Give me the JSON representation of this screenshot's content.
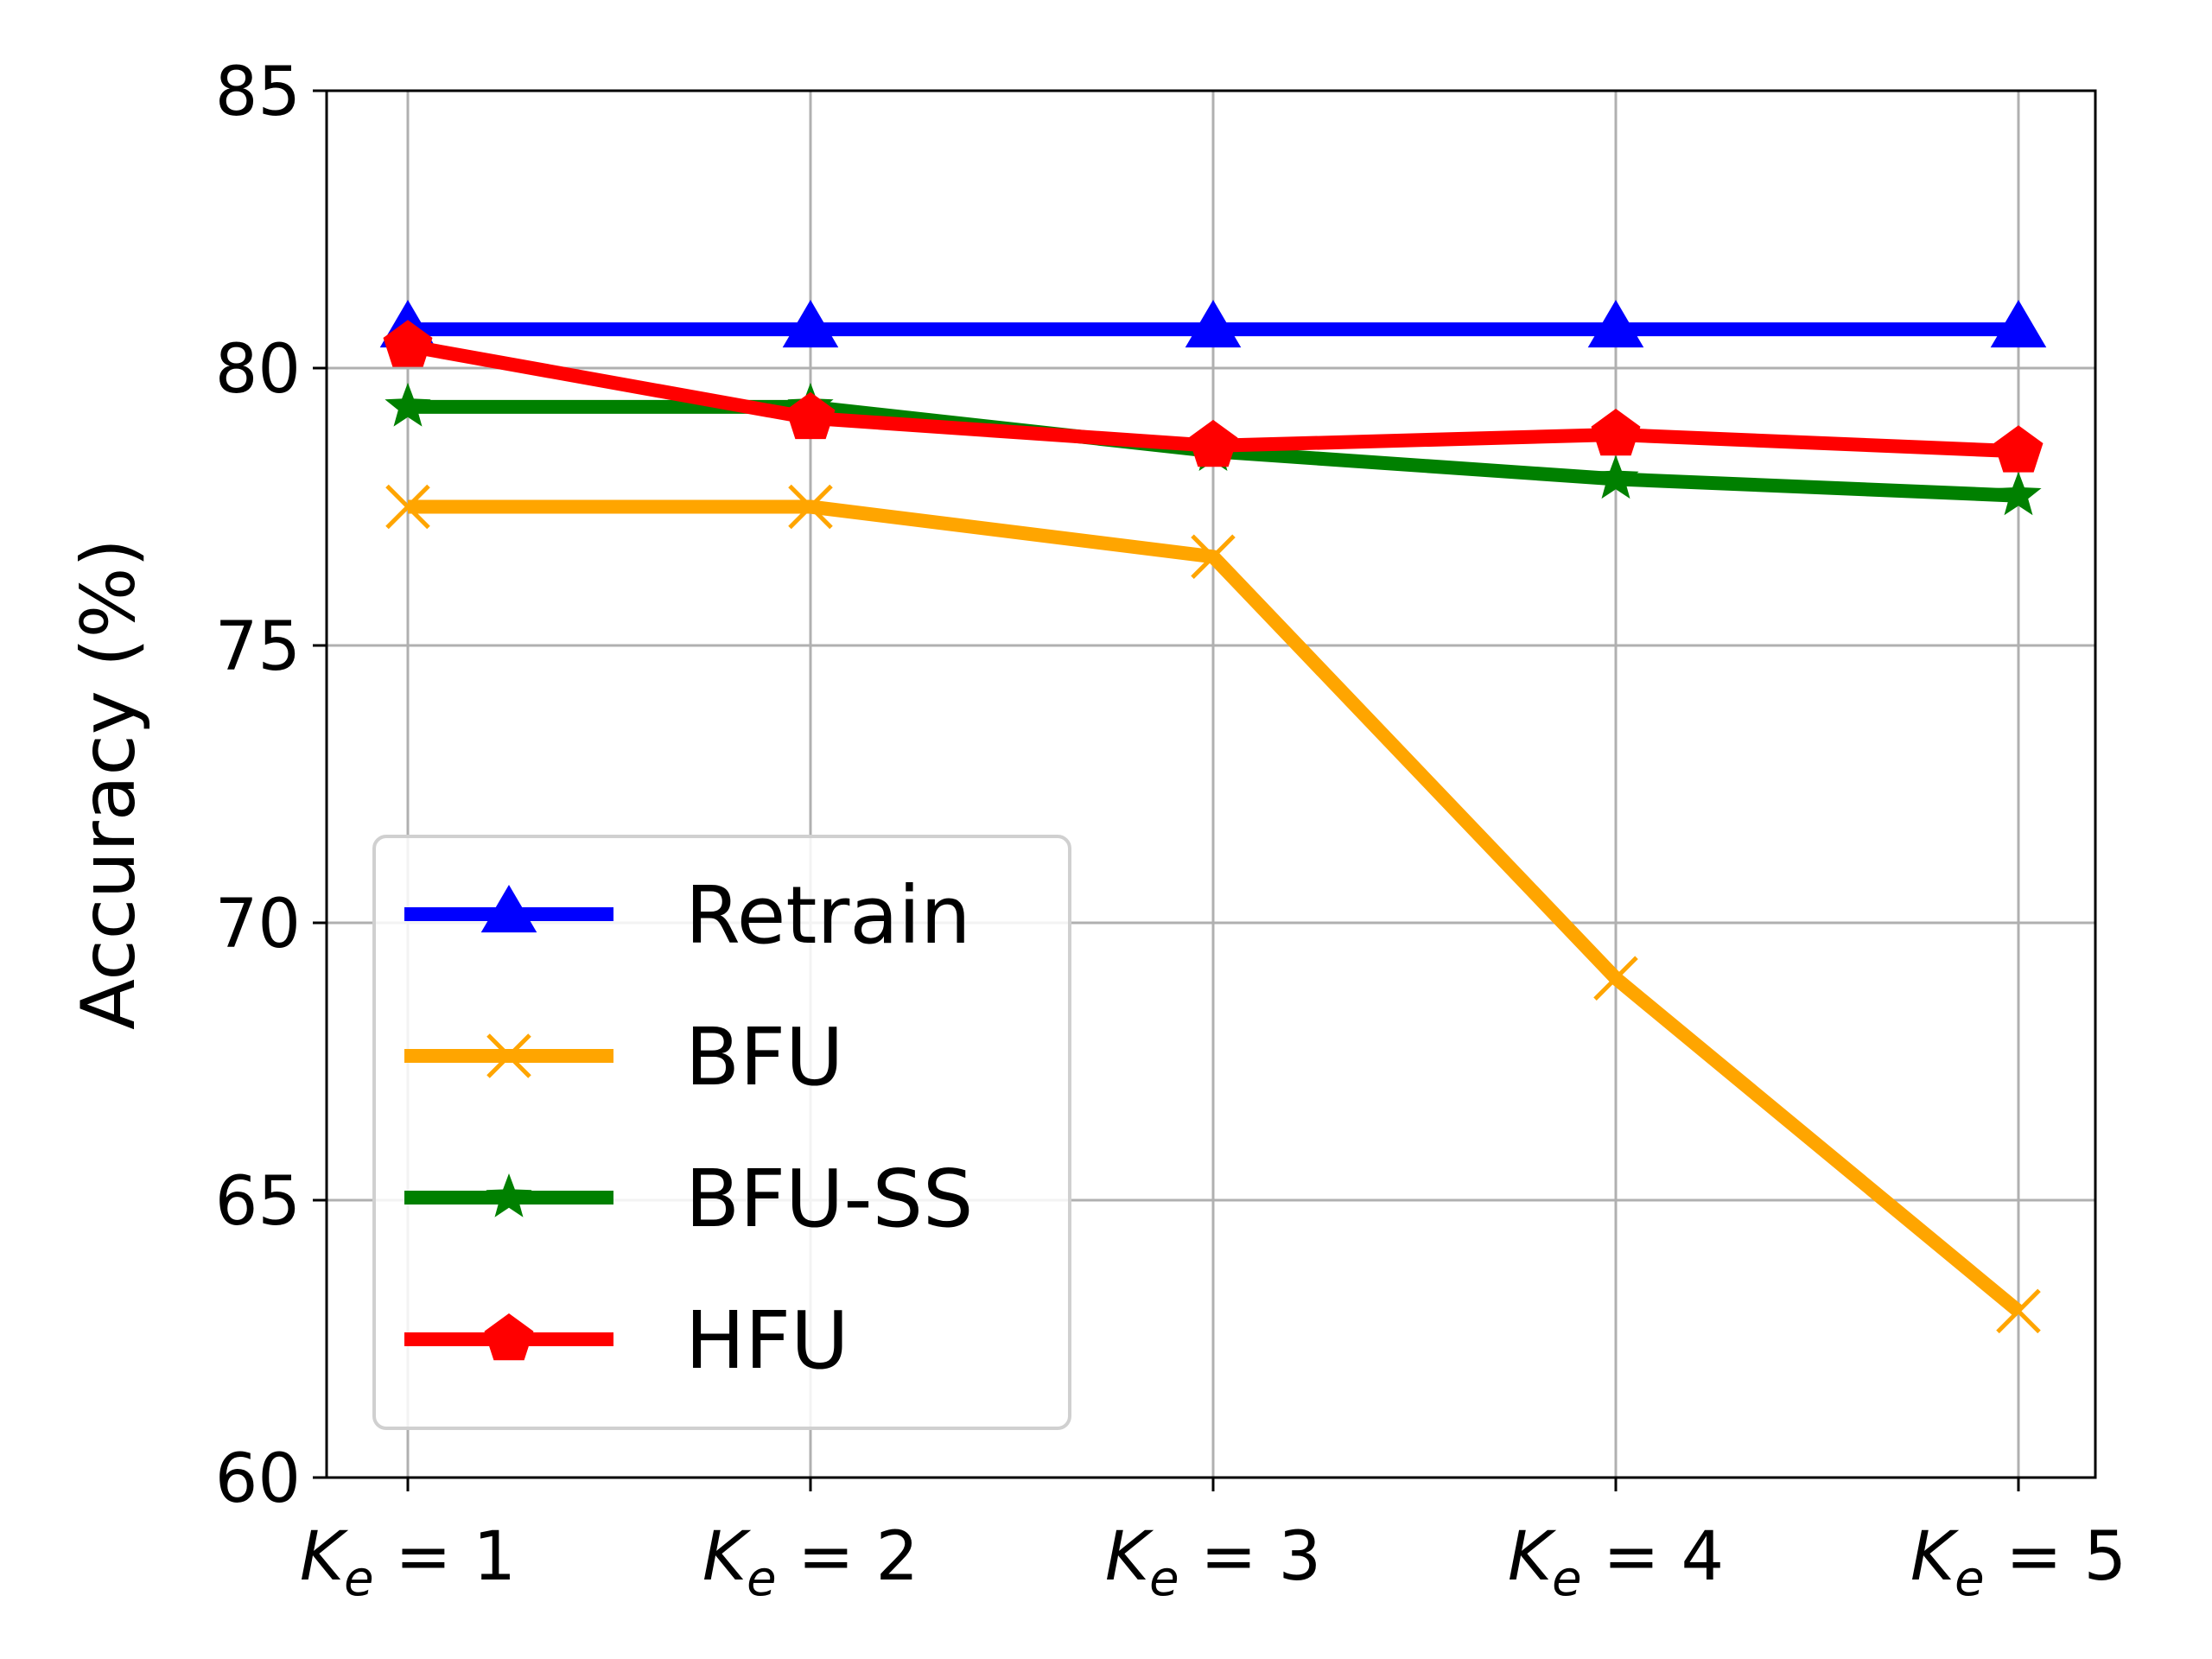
{
  "chart_data": {
    "type": "line",
    "ylabel": "Accuracy (%)",
    "xlabel": "",
    "categories": [
      {
        "var": "K",
        "sub": "e",
        "rest": " = 1"
      },
      {
        "var": "K",
        "sub": "e",
        "rest": " = 2"
      },
      {
        "var": "K",
        "sub": "e",
        "rest": " = 3"
      },
      {
        "var": "K",
        "sub": "e",
        "rest": " = 4"
      },
      {
        "var": "K",
        "sub": "e",
        "rest": " = 5"
      }
    ],
    "ylim": [
      60,
      85
    ],
    "yticks": [
      60,
      65,
      70,
      75,
      80,
      85
    ],
    "grid": true,
    "legend_position": "lower-left",
    "series": [
      {
        "name": "Retrain",
        "color": "#0000ff",
        "marker": "triangle",
        "values": [
          80.7,
          80.7,
          80.7,
          80.7,
          80.7
        ]
      },
      {
        "name": "BFU",
        "color": "#ffa500",
        "marker": "x",
        "values": [
          77.5,
          77.5,
          76.6,
          69.0,
          63.0
        ]
      },
      {
        "name": "BFU-SS",
        "color": "#008000",
        "marker": "star",
        "values": [
          79.3,
          79.3,
          78.5,
          78.0,
          77.7
        ]
      },
      {
        "name": "HFU",
        "color": "#ff0000",
        "marker": "pentagon",
        "values": [
          80.4,
          79.1,
          78.6,
          78.8,
          78.5
        ]
      }
    ]
  }
}
